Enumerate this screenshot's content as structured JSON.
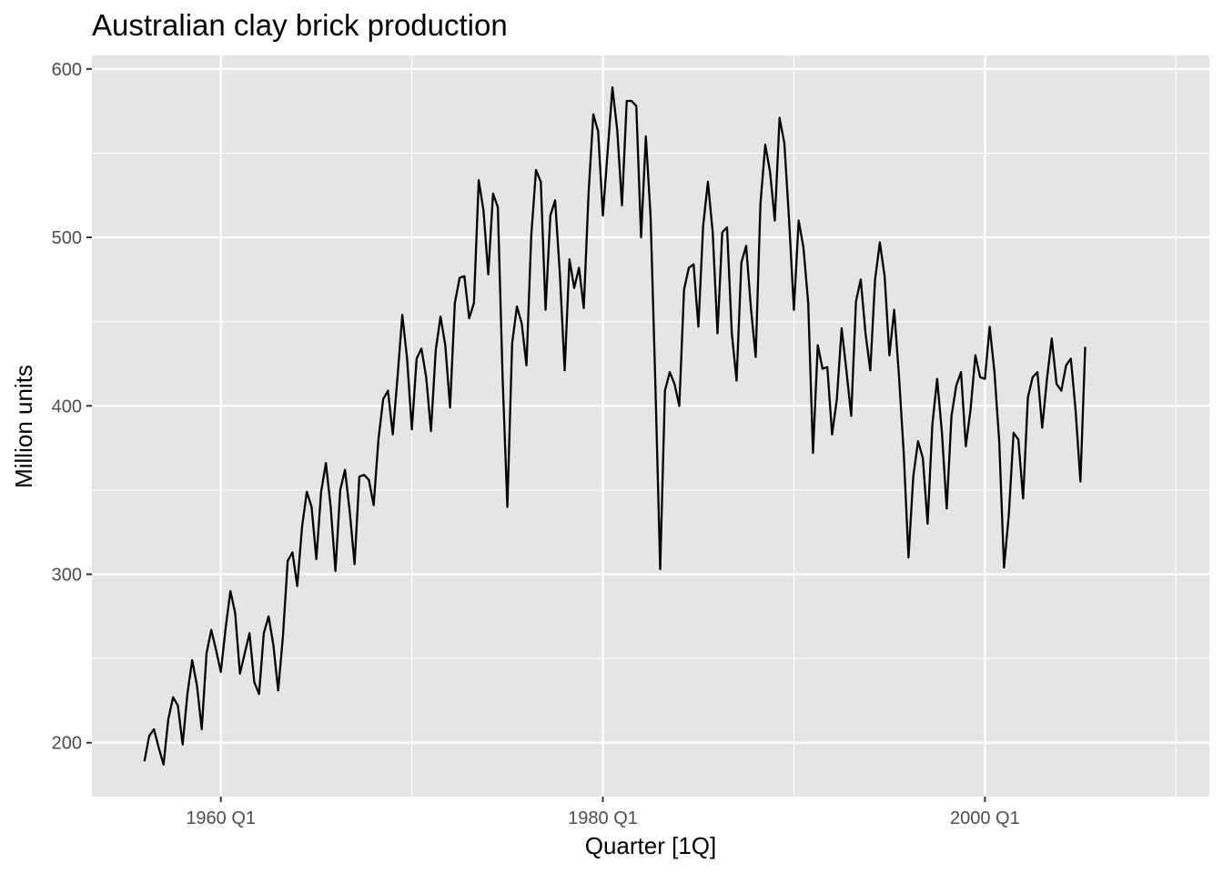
{
  "chart_data": {
    "type": "line",
    "title": "Australian clay brick production",
    "xlabel": "Quarter [1Q]",
    "ylabel": "Million units",
    "xlim": [
      1953.25,
      2011.75
    ],
    "ylim": [
      168,
      608
    ],
    "x_ticks": [
      1960,
      1980,
      2000
    ],
    "x_tick_labels": [
      "1960 Q1",
      "1980 Q1",
      "2000 Q1"
    ],
    "x_minor_ticks": [
      1970,
      1990,
      2010
    ],
    "y_ticks": [
      200,
      300,
      400,
      500,
      600
    ],
    "y_tick_labels": [
      "200",
      "300",
      "400",
      "500",
      "600"
    ],
    "y_minor_ticks": [
      250,
      350,
      450,
      550
    ],
    "grid": true,
    "panel_color": "#e5e5e5",
    "grid_color": "#ffffff",
    "line_color": "#000000",
    "x_start": "1956 Q1",
    "frequency": "quarterly",
    "values": [
      189,
      204,
      208,
      197,
      187,
      214,
      227,
      222,
      199,
      229,
      249,
      234,
      208,
      253,
      267,
      255,
      242,
      268,
      290,
      277,
      241,
      253,
      265,
      236,
      229,
      265,
      275,
      258,
      231,
      263,
      308,
      313,
      293,
      328,
      349,
      340,
      309,
      349,
      366,
      340,
      302,
      350,
      362,
      337,
      306,
      358,
      359,
      356,
      341,
      380,
      404,
      409,
      383,
      417,
      454,
      428,
      386,
      428,
      434,
      417,
      385,
      433,
      453,
      436,
      399,
      461,
      476,
      477,
      452,
      461,
      534,
      516,
      478,
      526,
      518,
      417,
      340,
      437,
      459,
      449,
      424,
      501,
      540,
      533,
      457,
      513,
      522,
      478,
      421,
      487,
      470,
      482,
      458,
      526,
      573,
      563,
      513,
      551,
      589,
      564,
      519,
      581,
      581,
      578,
      500,
      560,
      512,
      412,
      303,
      409,
      420,
      413,
      400,
      469,
      482,
      484,
      447,
      507,
      533,
      503,
      443,
      503,
      506,
      443,
      415,
      485,
      495,
      458,
      429,
      520,
      555,
      539,
      510,
      571,
      556,
      510,
      457,
      510,
      494,
      461,
      372,
      436,
      422,
      423,
      383,
      404,
      446,
      421,
      394,
      462,
      475,
      443,
      421,
      475,
      497,
      477,
      430,
      457,
      418,
      372,
      310,
      358,
      379,
      369,
      330,
      389,
      416,
      384,
      339,
      394,
      412,
      420,
      376,
      398,
      430,
      417,
      416,
      447,
      420,
      379,
      304,
      335,
      384,
      380,
      345,
      405,
      417,
      420,
      387,
      416,
      440,
      413,
      409,
      424,
      428,
      397,
      355,
      435
    ]
  }
}
